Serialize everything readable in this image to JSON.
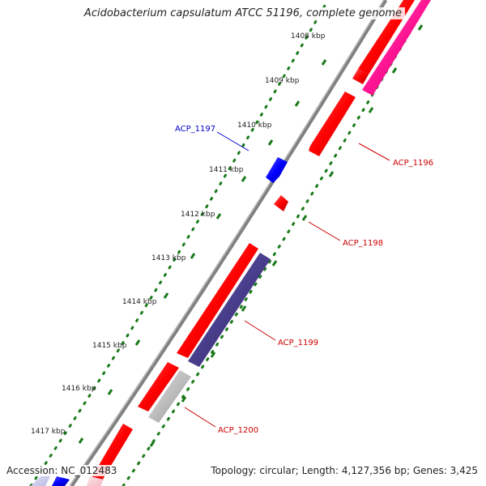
{
  "title": "Acidobacterium capsulatum ATCC 51196, complete genome",
  "footer": {
    "accession": "Accession: NC_012483",
    "summary": "Topology: circular; Length: 4,127,356 bp; Genes: 3,425"
  },
  "scale_unit": "kbp",
  "scale_ticks": [
    "1408 kbp",
    "1409 kbp",
    "1410 kbp",
    "1411 kbp",
    "1412 kbp",
    "1413 kbp",
    "1414 kbp",
    "1415 kbp",
    "1416 kbp",
    "1417 kbp"
  ],
  "gene_labels": [
    {
      "text": "ACP_1197",
      "color": "#0000cc"
    },
    {
      "text": "ACP_1196",
      "color": "#cc0000"
    },
    {
      "text": "ACP_1198",
      "color": "#cc0000"
    },
    {
      "text": "ACP_1199",
      "color": "#cc0000"
    },
    {
      "text": "ACP_1200",
      "color": "#cc0000"
    }
  ],
  "colors": {
    "backbone": "#808080",
    "forward_gene": "#ff0000",
    "rrna": "#ff1493",
    "operon": "#483d8b",
    "gray_feature": "#bfbfbf",
    "highlight": "#0000ff",
    "scale_dots": "#1a7a1a"
  }
}
